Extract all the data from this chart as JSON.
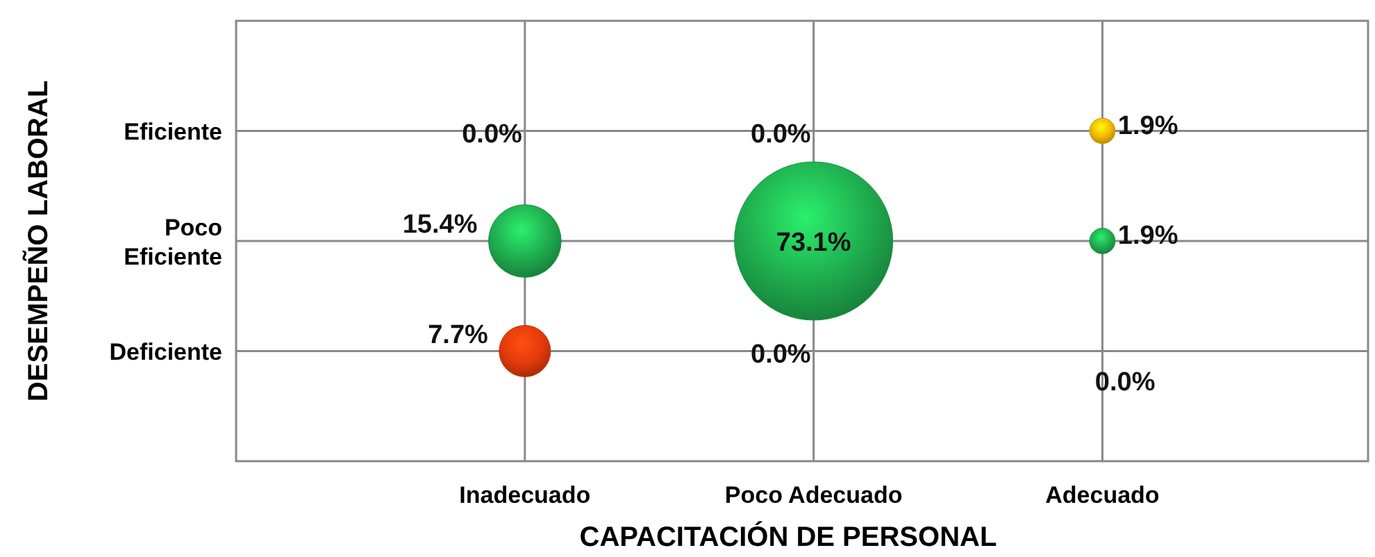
{
  "chart_data": {
    "type": "heatmap",
    "xlabel": "CAPACITACIÓN DE PERSONAL",
    "ylabel": "DESEMPEÑO LABORAL",
    "categories": [
      "Inadecuado",
      "Poco Adecuado",
      "Adecuado"
    ],
    "y_categories": [
      "Eficiente",
      "Poco Eficiente",
      "Deficiente"
    ],
    "grid": true,
    "colors": [
      "#f2b705",
      "#1fae4f",
      "#e53a0c"
    ],
    "cells": [
      [
        0,
        0,
        1.9
      ],
      [
        15.4,
        73.1,
        1.9
      ],
      [
        7.7,
        0,
        0
      ]
    ],
    "cell_labels": [
      [
        "0.0%",
        "0.0%",
        "1.9%"
      ],
      [
        "15.4%",
        "73.1%",
        "1.9%"
      ],
      [
        "7.7%",
        "0.0%",
        "0.0%"
      ]
    ]
  }
}
